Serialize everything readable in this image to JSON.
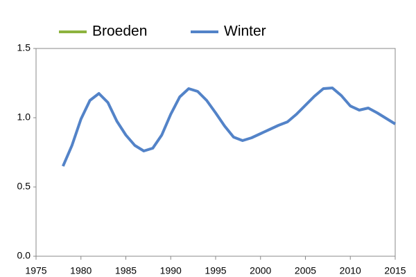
{
  "chart_data": {
    "type": "line",
    "x": [
      1978,
      1979,
      1980,
      1981,
      1982,
      1983,
      1984,
      1985,
      1986,
      1987,
      1988,
      1989,
      1990,
      1991,
      1992,
      1993,
      1994,
      1995,
      1996,
      1997,
      1998,
      1999,
      2000,
      2001,
      2002,
      2003,
      2004,
      2005,
      2006,
      2007,
      2008,
      2009,
      2010,
      2011,
      2012,
      2013,
      2014,
      2015
    ],
    "series": [
      {
        "name": "Broeden",
        "color": "#8db33f",
        "values": [
          null,
          null,
          null,
          null,
          null,
          null,
          null,
          null,
          null,
          null,
          null,
          null,
          null,
          null,
          null,
          null,
          null,
          null,
          null,
          null,
          null,
          null,
          null,
          null,
          null,
          null,
          null,
          null,
          null,
          null,
          null,
          null,
          null,
          null,
          null,
          null,
          null,
          null
        ]
      },
      {
        "name": "Winter",
        "color": "#5383c8",
        "values": [
          0.65,
          0.8,
          0.99,
          1.125,
          1.175,
          1.11,
          0.975,
          0.875,
          0.8,
          0.76,
          0.78,
          0.875,
          1.025,
          1.15,
          1.21,
          1.19,
          1.125,
          1.035,
          0.94,
          0.86,
          0.835,
          0.855,
          0.885,
          0.915,
          0.945,
          0.97,
          1.025,
          1.09,
          1.155,
          1.21,
          1.215,
          1.16,
          1.085,
          1.055,
          1.07,
          1.035,
          0.995,
          0.955
        ]
      }
    ],
    "xlim": [
      1975,
      2015
    ],
    "xticks": [
      1975,
      1980,
      1985,
      1990,
      1995,
      2000,
      2005,
      2010,
      2015
    ],
    "ylim": [
      0,
      1.5
    ],
    "yticks": [
      {
        "value": 0,
        "label": "0.0"
      },
      {
        "value": 0.5,
        "label": "0.5"
      },
      {
        "value": 1,
        "label": "1.0"
      },
      {
        "value": 1.5,
        "label": "1.5"
      }
    ],
    "grid": false,
    "legend": "top"
  }
}
